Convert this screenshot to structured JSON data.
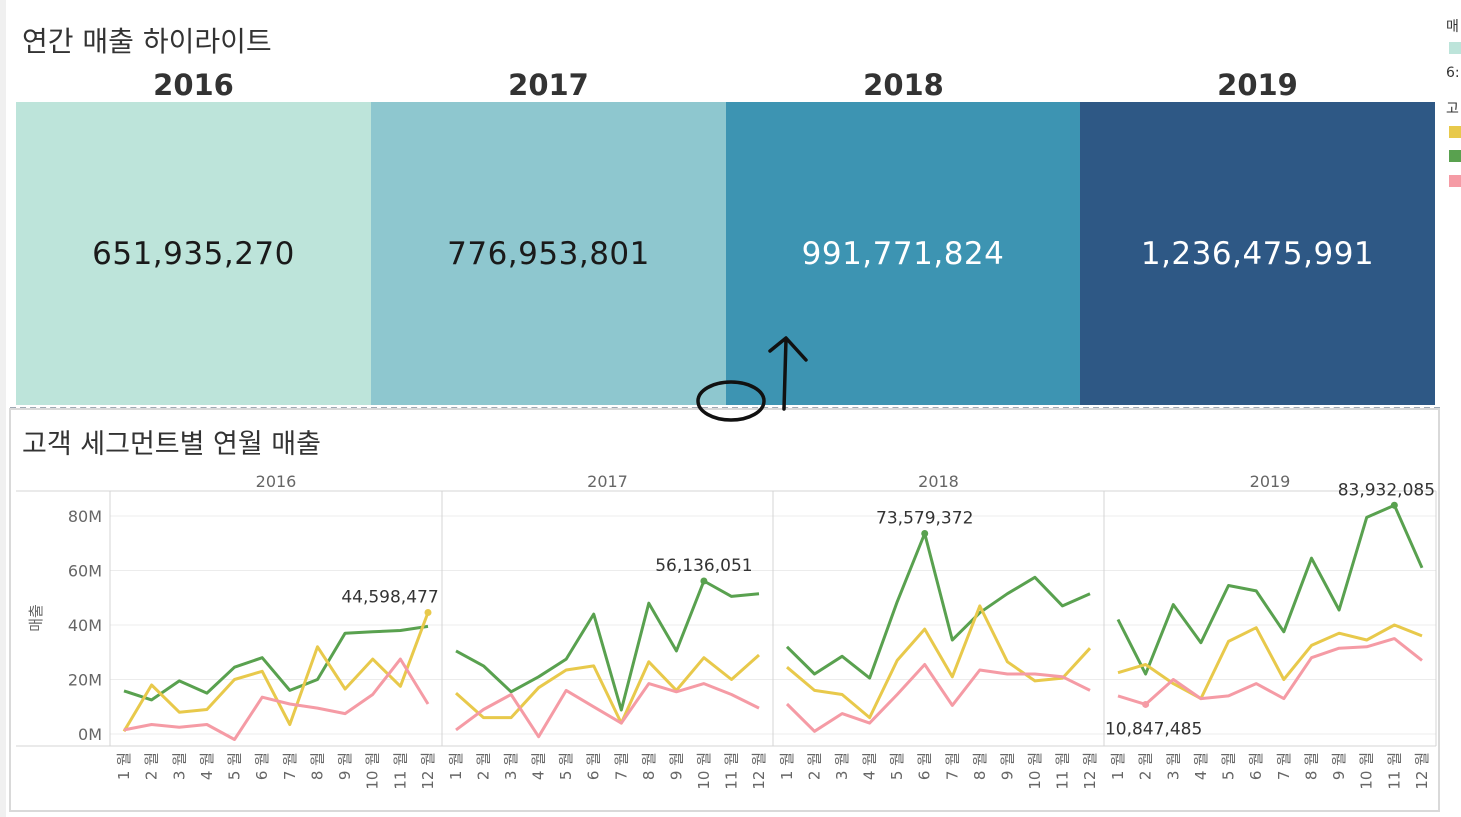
{
  "highlight": {
    "title": "연간 매출 하이라이트",
    "years": [
      "2016",
      "2017",
      "2018",
      "2019"
    ],
    "values": [
      "651,935,270",
      "776,953,801",
      "991,771,824",
      "1,236,475,991"
    ],
    "tile_colors": [
      "#bde4da",
      "#8ec7cf",
      "#3d94b2",
      "#2e5885"
    ],
    "text_colors": [
      "#1a1a1a",
      "#1a1a1a",
      "#ffffff",
      "#ffffff"
    ]
  },
  "legend_fragment": {
    "label_top": "매",
    "value_frag": "6:",
    "label_mid": "고",
    "colors": [
      "#bde4da",
      "#e8c94b",
      "#59a14f",
      "#f59ba5"
    ]
  },
  "segment_chart": {
    "title": "고객 세그먼트별 연월 매출"
  },
  "chart_data": {
    "type": "line",
    "ylabel": "매출",
    "ylim": [
      0,
      90000000
    ],
    "yticks": [
      0,
      20000000,
      40000000,
      60000000,
      80000000
    ],
    "ytick_labels": [
      "0M",
      "20M",
      "40M",
      "60M",
      "80M"
    ],
    "panels": [
      "2016",
      "2017",
      "2018",
      "2019"
    ],
    "month_labels": [
      "1 월",
      "2 월",
      "3 월",
      "4 월",
      "5 월",
      "6 월",
      "7 월",
      "8 월",
      "9 월",
      "10 월",
      "11 월",
      "12 월"
    ],
    "series": [
      {
        "color": "#59a14f",
        "values": [
          [
            15800000,
            12500000,
            19500000,
            15000000,
            24500000,
            28000000,
            16000000,
            20000000,
            37000000,
            37500000,
            38000000,
            39500000
          ],
          [
            30500000,
            25000000,
            15500000,
            21000000,
            27500000,
            44000000,
            8800000,
            48000000,
            30500000,
            56136051,
            50500000,
            51500000
          ],
          [
            32000000,
            22000000,
            28500000,
            20500000,
            48500000,
            73579372,
            34500000,
            44500000,
            51500000,
            57500000,
            47000000,
            51500000
          ],
          [
            42000000,
            22000000,
            47500000,
            33500000,
            54500000,
            52500000,
            37500000,
            64500000,
            45500000,
            79500000,
            83932085,
            61000000
          ]
        ]
      },
      {
        "color": "#e8c94b",
        "values": [
          [
            1000000,
            18000000,
            8000000,
            9000000,
            20000000,
            23000000,
            3500000,
            32000000,
            16500000,
            27500000,
            17500000,
            44598477
          ],
          [
            15000000,
            6000000,
            6000000,
            17000000,
            23500000,
            25000000,
            4000000,
            26500000,
            16000000,
            28000000,
            20000000,
            29000000
          ],
          [
            24500000,
            16000000,
            14500000,
            6000000,
            27000000,
            38500000,
            21000000,
            47000000,
            26500000,
            19500000,
            20500000,
            31500000
          ],
          [
            22500000,
            25500000,
            18500000,
            13000000,
            34000000,
            39000000,
            20000000,
            32500000,
            37000000,
            34500000,
            40000000,
            36000000
          ]
        ]
      },
      {
        "color": "#f59ba5",
        "values": [
          [
            1500000,
            3500000,
            2500000,
            3500000,
            -2000000,
            13500000,
            11000000,
            9500000,
            7500000,
            14500000,
            27500000,
            11000000
          ],
          [
            1500000,
            9000000,
            14500000,
            -1000000,
            16000000,
            10000000,
            4000000,
            18500000,
            15500000,
            18500000,
            14500000,
            9500000
          ],
          [
            11000000,
            1000000,
            7500000,
            4000000,
            14500000,
            25500000,
            10500000,
            23500000,
            22000000,
            22000000,
            21000000,
            16000000
          ],
          [
            14000000,
            10847485,
            20000000,
            13000000,
            14000000,
            18500000,
            13000000,
            28000000,
            31500000,
            32000000,
            35000000,
            27000000
          ]
        ]
      }
    ],
    "annotations": [
      {
        "panel": 0,
        "month": 12,
        "text": "44,598,477"
      },
      {
        "panel": 1,
        "month": 10,
        "text": "56,136,051"
      },
      {
        "panel": 2,
        "month": 6,
        "text": "73,579,372"
      },
      {
        "panel": 3,
        "month": 11,
        "text": "83,932,085"
      },
      {
        "panel": 3,
        "month": 2,
        "text": "10,847,485"
      }
    ]
  }
}
